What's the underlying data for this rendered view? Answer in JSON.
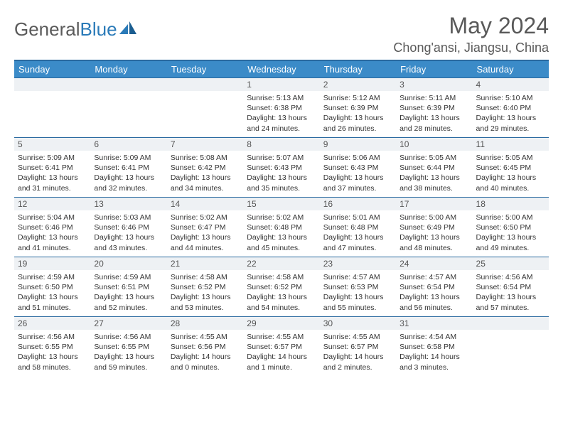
{
  "brand": {
    "part1": "General",
    "part2": "Blue"
  },
  "title": "May 2024",
  "location": "Chong'ansi, Jiangsu, China",
  "colors": {
    "header_bg": "#3b8bc8",
    "border": "#2a6aa0",
    "daynum_bg": "#eef1f4",
    "text": "#333333",
    "title_text": "#595959"
  },
  "weekdays": [
    "Sunday",
    "Monday",
    "Tuesday",
    "Wednesday",
    "Thursday",
    "Friday",
    "Saturday"
  ],
  "weeks": [
    [
      null,
      null,
      null,
      {
        "n": "1",
        "sr": "Sunrise: 5:13 AM",
        "ss": "Sunset: 6:38 PM",
        "dl": "Daylight: 13 hours and 24 minutes."
      },
      {
        "n": "2",
        "sr": "Sunrise: 5:12 AM",
        "ss": "Sunset: 6:39 PM",
        "dl": "Daylight: 13 hours and 26 minutes."
      },
      {
        "n": "3",
        "sr": "Sunrise: 5:11 AM",
        "ss": "Sunset: 6:39 PM",
        "dl": "Daylight: 13 hours and 28 minutes."
      },
      {
        "n": "4",
        "sr": "Sunrise: 5:10 AM",
        "ss": "Sunset: 6:40 PM",
        "dl": "Daylight: 13 hours and 29 minutes."
      }
    ],
    [
      {
        "n": "5",
        "sr": "Sunrise: 5:09 AM",
        "ss": "Sunset: 6:41 PM",
        "dl": "Daylight: 13 hours and 31 minutes."
      },
      {
        "n": "6",
        "sr": "Sunrise: 5:09 AM",
        "ss": "Sunset: 6:41 PM",
        "dl": "Daylight: 13 hours and 32 minutes."
      },
      {
        "n": "7",
        "sr": "Sunrise: 5:08 AM",
        "ss": "Sunset: 6:42 PM",
        "dl": "Daylight: 13 hours and 34 minutes."
      },
      {
        "n": "8",
        "sr": "Sunrise: 5:07 AM",
        "ss": "Sunset: 6:43 PM",
        "dl": "Daylight: 13 hours and 35 minutes."
      },
      {
        "n": "9",
        "sr": "Sunrise: 5:06 AM",
        "ss": "Sunset: 6:43 PM",
        "dl": "Daylight: 13 hours and 37 minutes."
      },
      {
        "n": "10",
        "sr": "Sunrise: 5:05 AM",
        "ss": "Sunset: 6:44 PM",
        "dl": "Daylight: 13 hours and 38 minutes."
      },
      {
        "n": "11",
        "sr": "Sunrise: 5:05 AM",
        "ss": "Sunset: 6:45 PM",
        "dl": "Daylight: 13 hours and 40 minutes."
      }
    ],
    [
      {
        "n": "12",
        "sr": "Sunrise: 5:04 AM",
        "ss": "Sunset: 6:46 PM",
        "dl": "Daylight: 13 hours and 41 minutes."
      },
      {
        "n": "13",
        "sr": "Sunrise: 5:03 AM",
        "ss": "Sunset: 6:46 PM",
        "dl": "Daylight: 13 hours and 43 minutes."
      },
      {
        "n": "14",
        "sr": "Sunrise: 5:02 AM",
        "ss": "Sunset: 6:47 PM",
        "dl": "Daylight: 13 hours and 44 minutes."
      },
      {
        "n": "15",
        "sr": "Sunrise: 5:02 AM",
        "ss": "Sunset: 6:48 PM",
        "dl": "Daylight: 13 hours and 45 minutes."
      },
      {
        "n": "16",
        "sr": "Sunrise: 5:01 AM",
        "ss": "Sunset: 6:48 PM",
        "dl": "Daylight: 13 hours and 47 minutes."
      },
      {
        "n": "17",
        "sr": "Sunrise: 5:00 AM",
        "ss": "Sunset: 6:49 PM",
        "dl": "Daylight: 13 hours and 48 minutes."
      },
      {
        "n": "18",
        "sr": "Sunrise: 5:00 AM",
        "ss": "Sunset: 6:50 PM",
        "dl": "Daylight: 13 hours and 49 minutes."
      }
    ],
    [
      {
        "n": "19",
        "sr": "Sunrise: 4:59 AM",
        "ss": "Sunset: 6:50 PM",
        "dl": "Daylight: 13 hours and 51 minutes."
      },
      {
        "n": "20",
        "sr": "Sunrise: 4:59 AM",
        "ss": "Sunset: 6:51 PM",
        "dl": "Daylight: 13 hours and 52 minutes."
      },
      {
        "n": "21",
        "sr": "Sunrise: 4:58 AM",
        "ss": "Sunset: 6:52 PM",
        "dl": "Daylight: 13 hours and 53 minutes."
      },
      {
        "n": "22",
        "sr": "Sunrise: 4:58 AM",
        "ss": "Sunset: 6:52 PM",
        "dl": "Daylight: 13 hours and 54 minutes."
      },
      {
        "n": "23",
        "sr": "Sunrise: 4:57 AM",
        "ss": "Sunset: 6:53 PM",
        "dl": "Daylight: 13 hours and 55 minutes."
      },
      {
        "n": "24",
        "sr": "Sunrise: 4:57 AM",
        "ss": "Sunset: 6:54 PM",
        "dl": "Daylight: 13 hours and 56 minutes."
      },
      {
        "n": "25",
        "sr": "Sunrise: 4:56 AM",
        "ss": "Sunset: 6:54 PM",
        "dl": "Daylight: 13 hours and 57 minutes."
      }
    ],
    [
      {
        "n": "26",
        "sr": "Sunrise: 4:56 AM",
        "ss": "Sunset: 6:55 PM",
        "dl": "Daylight: 13 hours and 58 minutes."
      },
      {
        "n": "27",
        "sr": "Sunrise: 4:56 AM",
        "ss": "Sunset: 6:55 PM",
        "dl": "Daylight: 13 hours and 59 minutes."
      },
      {
        "n": "28",
        "sr": "Sunrise: 4:55 AM",
        "ss": "Sunset: 6:56 PM",
        "dl": "Daylight: 14 hours and 0 minutes."
      },
      {
        "n": "29",
        "sr": "Sunrise: 4:55 AM",
        "ss": "Sunset: 6:57 PM",
        "dl": "Daylight: 14 hours and 1 minute."
      },
      {
        "n": "30",
        "sr": "Sunrise: 4:55 AM",
        "ss": "Sunset: 6:57 PM",
        "dl": "Daylight: 14 hours and 2 minutes."
      },
      {
        "n": "31",
        "sr": "Sunrise: 4:54 AM",
        "ss": "Sunset: 6:58 PM",
        "dl": "Daylight: 14 hours and 3 minutes."
      },
      null
    ]
  ]
}
